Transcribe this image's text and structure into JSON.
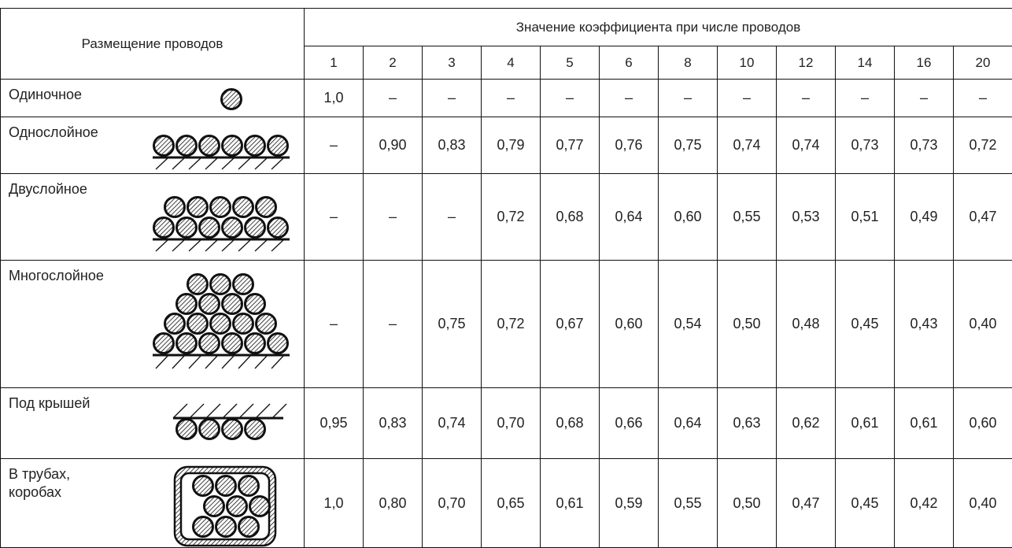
{
  "table": {
    "header": {
      "placement": "Размещение проводов",
      "group": "Значение коэффициента при числе проводов",
      "counts": [
        "1",
        "2",
        "3",
        "4",
        "5",
        "6",
        "8",
        "10",
        "12",
        "14",
        "16",
        "20"
      ]
    },
    "rows": [
      {
        "label": "Одиночное",
        "values": [
          "1,0",
          "–",
          "–",
          "–",
          "–",
          "–",
          "–",
          "–",
          "–",
          "–",
          "–",
          "–"
        ]
      },
      {
        "label": "Однослойное",
        "values": [
          "–",
          "0,90",
          "0,83",
          "0,79",
          "0,77",
          "0,76",
          "0,75",
          "0,74",
          "0,74",
          "0,73",
          "0,73",
          "0,72"
        ]
      },
      {
        "label": "Двуслойное",
        "values": [
          "–",
          "–",
          "–",
          "0,72",
          "0,68",
          "0,64",
          "0,60",
          "0,55",
          "0,53",
          "0,51",
          "0,49",
          "0,47"
        ]
      },
      {
        "label": "Многослойное",
        "values": [
          "–",
          "–",
          "0,75",
          "0,72",
          "0,67",
          "0,60",
          "0,54",
          "0,50",
          "0,48",
          "0,45",
          "0,43",
          "0,40"
        ]
      },
      {
        "label": "Под крышей",
        "values": [
          "0,95",
          "0,83",
          "0,74",
          "0,70",
          "0,68",
          "0,66",
          "0,64",
          "0,63",
          "0,62",
          "0,61",
          "0,61",
          "0,60"
        ]
      },
      {
        "label": "В трубах, коробах",
        "values": [
          "1,0",
          "0,80",
          "0,70",
          "0,65",
          "0,61",
          "0,59",
          "0,55",
          "0,50",
          "0,47",
          "0,45",
          "0,42",
          "0,40"
        ]
      }
    ]
  }
}
